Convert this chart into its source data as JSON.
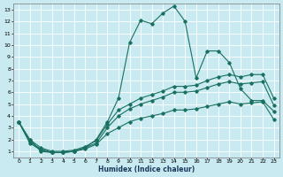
{
  "xlabel": "Humidex (Indice chaleur)",
  "bg_color": "#c8eaf0",
  "grid_color": "#ffffff",
  "line_color": "#1a7060",
  "xlim": [
    -0.5,
    23.5
  ],
  "ylim": [
    0.5,
    13.5
  ],
  "xticks": [
    0,
    1,
    2,
    3,
    4,
    5,
    6,
    7,
    8,
    9,
    10,
    11,
    12,
    13,
    14,
    15,
    16,
    17,
    18,
    19,
    20,
    21,
    22,
    23
  ],
  "yticks": [
    1,
    2,
    3,
    4,
    5,
    6,
    7,
    8,
    9,
    10,
    11,
    12,
    13
  ],
  "series1_x": [
    0,
    1,
    2,
    3,
    4,
    5,
    6,
    7,
    8,
    9,
    10,
    11,
    12,
    13,
    14,
    15,
    16,
    17,
    18,
    19,
    20,
    21,
    22,
    23
  ],
  "series1_y": [
    3.5,
    2.0,
    1.0,
    0.9,
    0.9,
    1.0,
    1.3,
    2.0,
    3.5,
    5.5,
    10.2,
    12.1,
    11.8,
    12.7,
    13.3,
    12.0,
    7.2,
    9.5,
    9.5,
    8.5,
    6.3,
    5.3,
    5.3,
    4.4
  ],
  "series2_x": [
    0,
    1,
    2,
    3,
    4,
    5,
    6,
    7,
    8,
    9,
    10,
    11,
    12,
    13,
    14,
    15,
    16,
    17,
    18,
    19,
    20,
    21,
    22,
    23
  ],
  "series2_y": [
    3.5,
    2.0,
    1.3,
    1.0,
    1.0,
    1.1,
    1.4,
    1.9,
    3.3,
    4.5,
    5.0,
    5.5,
    5.8,
    6.1,
    6.5,
    6.5,
    6.6,
    7.0,
    7.3,
    7.5,
    7.3,
    7.5,
    7.5,
    5.5
  ],
  "series3_x": [
    0,
    1,
    2,
    3,
    4,
    5,
    6,
    7,
    8,
    9,
    10,
    11,
    12,
    13,
    14,
    15,
    16,
    17,
    18,
    19,
    20,
    21,
    22,
    23
  ],
  "series3_y": [
    3.5,
    1.8,
    1.2,
    0.9,
    0.9,
    1.0,
    1.3,
    1.7,
    3.0,
    4.0,
    4.6,
    5.0,
    5.3,
    5.6,
    6.0,
    6.0,
    6.1,
    6.4,
    6.7,
    6.9,
    6.7,
    6.8,
    6.9,
    4.9
  ],
  "series4_x": [
    0,
    1,
    2,
    3,
    4,
    5,
    6,
    7,
    8,
    9,
    10,
    11,
    12,
    13,
    14,
    15,
    16,
    17,
    18,
    19,
    20,
    21,
    22,
    23
  ],
  "series4_y": [
    3.5,
    1.7,
    1.1,
    0.9,
    0.9,
    1.0,
    1.2,
    1.6,
    2.5,
    3.0,
    3.5,
    3.8,
    4.0,
    4.2,
    4.5,
    4.5,
    4.6,
    4.8,
    5.0,
    5.2,
    5.0,
    5.1,
    5.2,
    3.7
  ]
}
